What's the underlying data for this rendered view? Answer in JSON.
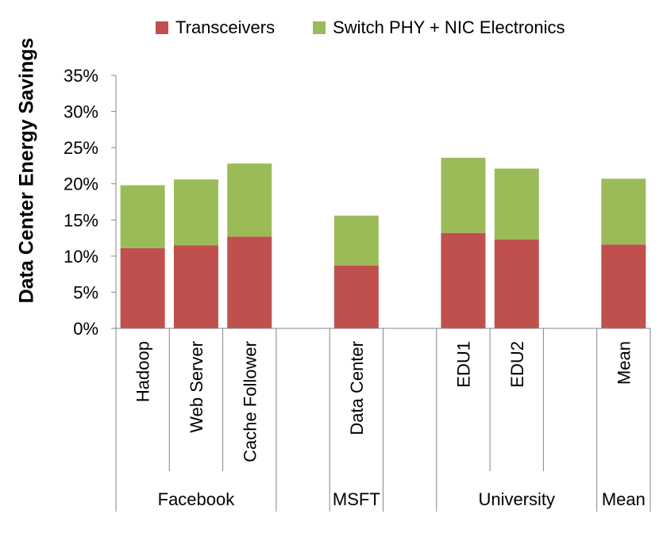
{
  "chart_data": {
    "type": "bar",
    "stacked": true,
    "title": "",
    "ylabel": "Data Center Energy Savings",
    "xlabel": "",
    "ylim": [
      0,
      35
    ],
    "yticks": [
      "0%",
      "5%",
      "10%",
      "15%",
      "20%",
      "25%",
      "30%",
      "35%"
    ],
    "categories": [
      "Hadoop",
      "Web Server",
      "Cache Follower",
      "",
      "Data Center",
      "",
      "EDU1",
      "EDU2",
      "",
      "Mean"
    ],
    "groups": [
      {
        "label": "Facebook",
        "start": 0,
        "end": 3
      },
      {
        "label": "MSFT",
        "start": 4,
        "end": 5
      },
      {
        "label": "University",
        "start": 6,
        "end": 9
      },
      {
        "label": "Mean",
        "start": 9,
        "end": 10
      }
    ],
    "series": [
      {
        "name": "Transceivers",
        "color": "#c0504d",
        "values": [
          11.1,
          11.5,
          12.7,
          null,
          8.7,
          null,
          13.2,
          12.3,
          null,
          11.6
        ]
      },
      {
        "name": "Switch PHY + NIC Electronics",
        "color": "#9bbb59",
        "values": [
          8.7,
          9.1,
          10.1,
          null,
          6.9,
          null,
          10.4,
          9.8,
          null,
          9.1
        ]
      }
    ],
    "legend": "top"
  }
}
